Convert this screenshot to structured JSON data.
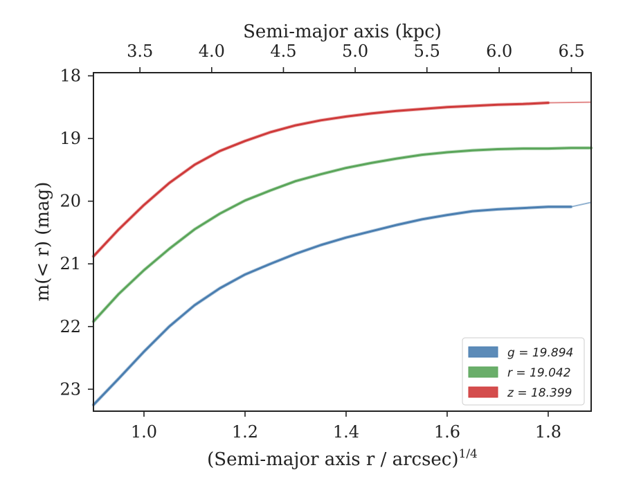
{
  "chart_data": {
    "type": "line",
    "title": "",
    "xlabel": "(Semi-major axis r / arcsec)",
    "xlabel_superscript": "1/4",
    "ylabel": "m(< r) (mag)",
    "x2label": "Semi-major axis (kpc)",
    "xlim": [
      0.9,
      1.885
    ],
    "ylim": [
      23.35,
      17.95
    ],
    "y_inverted": true,
    "xticks": [
      1.0,
      1.2,
      1.4,
      1.6,
      1.8
    ],
    "xtick_labels": [
      "1.0",
      "1.2",
      "1.4",
      "1.6",
      "1.8"
    ],
    "yticks": [
      18,
      19,
      20,
      21,
      22,
      23
    ],
    "ytick_labels": [
      "18",
      "19",
      "20",
      "21",
      "22",
      "23"
    ],
    "x2ticks": [
      3.5,
      4.0,
      4.5,
      5.0,
      5.5,
      6.0,
      6.5
    ],
    "x2tick_labels": [
      "3.5",
      "4.0",
      "4.5",
      "5.0",
      "5.5",
      "6.0",
      "6.5"
    ],
    "x2_to_x": [
      [
        3.5,
        0.992
      ],
      [
        4.0,
        1.134
      ],
      [
        4.5,
        1.276
      ],
      [
        5.0,
        1.418
      ],
      [
        5.5,
        1.56
      ],
      [
        6.0,
        1.703
      ],
      [
        6.5,
        1.846
      ]
    ],
    "grid": false,
    "legend_position": "lower-right",
    "series": [
      {
        "name": "g = 19.894",
        "legend_label": "g = 19.894",
        "color": "#4a7eb0",
        "x": [
          0.9,
          0.95,
          1.0,
          1.05,
          1.1,
          1.15,
          1.2,
          1.25,
          1.3,
          1.35,
          1.4,
          1.45,
          1.5,
          1.55,
          1.6,
          1.65,
          1.7,
          1.75,
          1.8,
          1.845
        ],
        "y": [
          23.25,
          22.83,
          22.4,
          22.0,
          21.66,
          21.39,
          21.17,
          21.0,
          20.84,
          20.7,
          20.58,
          20.48,
          20.38,
          20.29,
          20.22,
          20.16,
          20.13,
          20.11,
          20.09,
          20.09
        ],
        "extension_x": [
          1.845,
          1.885
        ],
        "extension_y": [
          20.09,
          20.02
        ]
      },
      {
        "name": "r = 19.042",
        "legend_label": "r = 19.042",
        "color": "#5aa55a",
        "x": [
          0.9,
          0.95,
          1.0,
          1.05,
          1.1,
          1.15,
          1.2,
          1.25,
          1.3,
          1.35,
          1.4,
          1.45,
          1.5,
          1.55,
          1.6,
          1.65,
          1.7,
          1.75,
          1.8,
          1.845,
          1.885
        ],
        "y": [
          21.92,
          21.48,
          21.1,
          20.76,
          20.45,
          20.2,
          19.99,
          19.83,
          19.68,
          19.57,
          19.47,
          19.39,
          19.32,
          19.26,
          19.22,
          19.19,
          19.17,
          19.16,
          19.16,
          19.15,
          19.15
        ],
        "extension_x": [],
        "extension_y": []
      },
      {
        "name": "z = 18.399",
        "legend_label": "z = 18.399",
        "color": "#cf3a3a",
        "x": [
          0.9,
          0.95,
          1.0,
          1.05,
          1.1,
          1.15,
          1.2,
          1.25,
          1.3,
          1.35,
          1.4,
          1.45,
          1.5,
          1.55,
          1.6,
          1.65,
          1.7,
          1.75,
          1.8
        ],
        "y": [
          20.88,
          20.45,
          20.06,
          19.71,
          19.42,
          19.2,
          19.04,
          18.9,
          18.79,
          18.71,
          18.65,
          18.6,
          18.56,
          18.53,
          18.5,
          18.48,
          18.46,
          18.45,
          18.43
        ],
        "extension_x": [
          1.8,
          1.885
        ],
        "extension_y": [
          18.43,
          18.42
        ]
      }
    ]
  }
}
